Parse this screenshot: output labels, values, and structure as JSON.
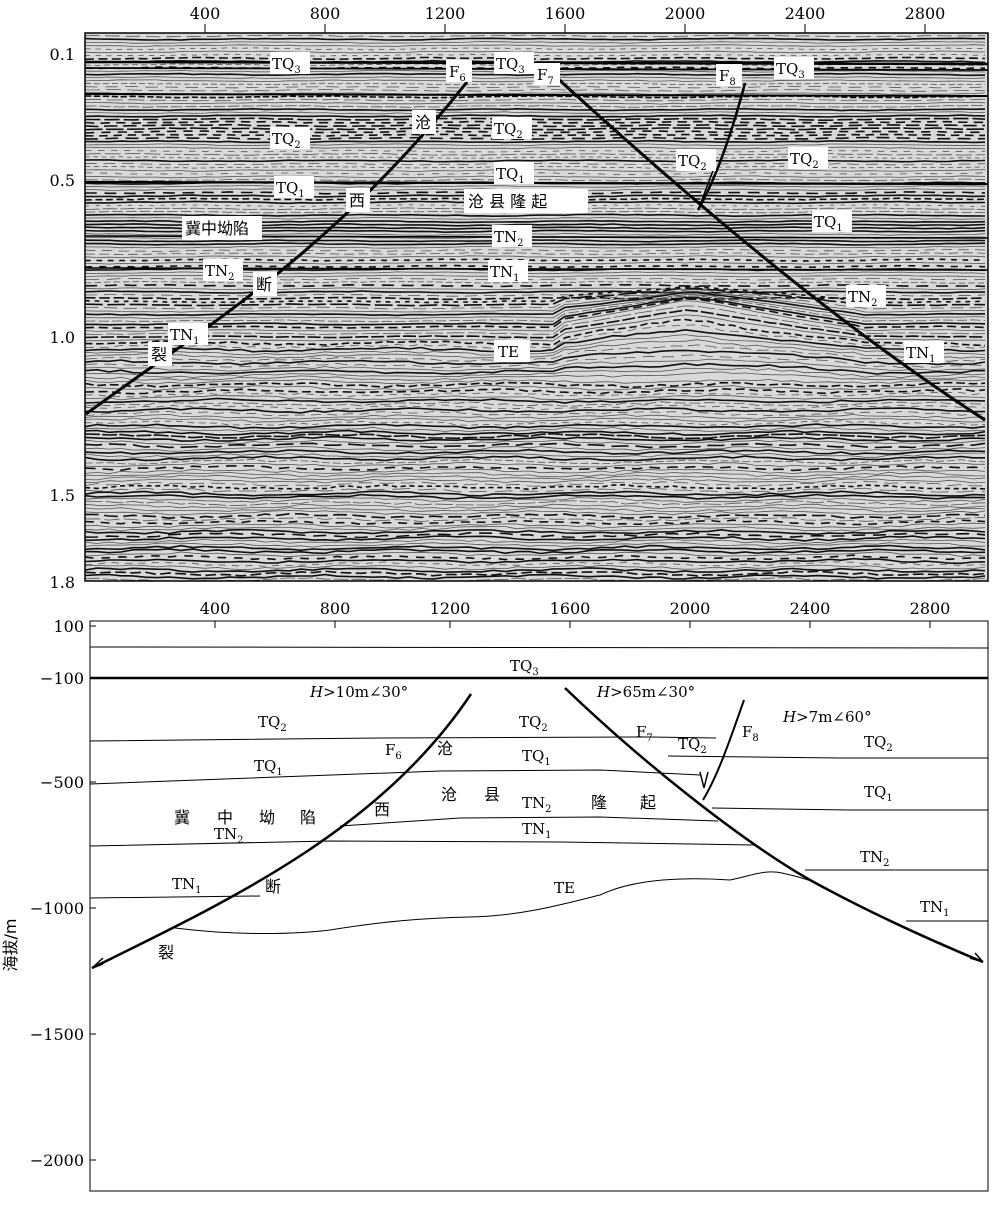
{
  "top_panel": {
    "x_ticks": [
      "400",
      "800",
      "1200",
      "1600",
      "2000",
      "2400",
      "2800"
    ],
    "y_ticks": [
      "0.1",
      "0.5",
      "1.0",
      "1.5",
      "1.8"
    ],
    "horizon_labels": {
      "tq3_a": {
        "base": "TQ",
        "sub": "3"
      },
      "tq3_b": {
        "base": "TQ",
        "sub": "3"
      },
      "tq3_c": {
        "base": "TQ",
        "sub": "3"
      },
      "tq2_a": {
        "base": "TQ",
        "sub": "2"
      },
      "tq2_b": {
        "base": "TQ",
        "sub": "2"
      },
      "tq2_c": {
        "base": "TQ",
        "sub": "2"
      },
      "tq2_d": {
        "base": "TQ",
        "sub": "2"
      },
      "tq1_a": {
        "base": "TQ",
        "sub": "1"
      },
      "tq1_b": {
        "base": "TQ",
        "sub": "1"
      },
      "tq1_c": {
        "base": "TQ",
        "sub": "1"
      },
      "tn2_a": {
        "base": "TN",
        "sub": "2"
      },
      "tn2_b": {
        "base": "TN",
        "sub": "2"
      },
      "tn2_c": {
        "base": "TN",
        "sub": "2"
      },
      "tn1_a": {
        "base": "TN",
        "sub": "1"
      },
      "tn1_b": {
        "base": "TN",
        "sub": "1"
      },
      "tn1_c": {
        "base": "TN",
        "sub": "1"
      },
      "te": {
        "base": "TE",
        "sub": ""
      }
    },
    "fault_labels": {
      "f6": {
        "base": "F",
        "sub": "6"
      },
      "f7": {
        "base": "F",
        "sub": "7"
      },
      "f8": {
        "base": "F",
        "sub": "8"
      }
    },
    "chinese": {
      "cang": "沧",
      "xi": "西",
      "duan": "断",
      "lie": "裂",
      "jizhong": "冀中坳陷",
      "cangxian": "沧 县 隆 起"
    }
  },
  "bottom_panel": {
    "x_ticks": [
      "400",
      "800",
      "1200",
      "1600",
      "2000",
      "2400",
      "2800"
    ],
    "y_ticks": [
      "100",
      "−100",
      "−500",
      "−1000",
      "−1500",
      "−2000"
    ],
    "y_axis_label": "海拔/m",
    "horizon_labels": {
      "tq3": {
        "base": "TQ",
        "sub": "3"
      },
      "tq2_a": {
        "base": "TQ",
        "sub": "2"
      },
      "tq2_b": {
        "base": "TQ",
        "sub": "2"
      },
      "tq2_c": {
        "base": "TQ",
        "sub": "2"
      },
      "tq2_d": {
        "base": "TQ",
        "sub": "2"
      },
      "tq1_a": {
        "base": "TQ",
        "sub": "1"
      },
      "tq1_b": {
        "base": "TQ",
        "sub": "1"
      },
      "tq1_c": {
        "base": "TQ",
        "sub": "1"
      },
      "tn2_a": {
        "base": "TN",
        "sub": "2"
      },
      "tn2_b": {
        "base": "TN",
        "sub": "2"
      },
      "tn2_c": {
        "base": "TN",
        "sub": "2"
      },
      "tn1_a": {
        "base": "TN",
        "sub": "1"
      },
      "tn1_b": {
        "base": "TN",
        "sub": "1"
      },
      "tn1_c": {
        "base": "TN",
        "sub": "1"
      },
      "te": {
        "base": "TE",
        "sub": ""
      }
    },
    "fault_labels": {
      "f6": {
        "base": "F",
        "sub": "6"
      },
      "f7": {
        "base": "F",
        "sub": "7"
      },
      "f8": {
        "base": "F",
        "sub": "8"
      }
    },
    "throws": {
      "f6": {
        "h": "H",
        "rest": ">10m∠30°"
      },
      "f7": {
        "h": "H",
        "rest": ">65m∠30°"
      },
      "f8": {
        "h": "H",
        "rest": ">7m∠60°"
      }
    },
    "chinese": {
      "cang": "沧",
      "xi": "西",
      "duan": "断",
      "lie": "裂",
      "ji": "冀",
      "zhong": "中",
      "ao": "坳",
      "xian": "陷",
      "cang2": "沧",
      "xian2": "县",
      "long": "隆",
      "qi": "起"
    }
  }
}
